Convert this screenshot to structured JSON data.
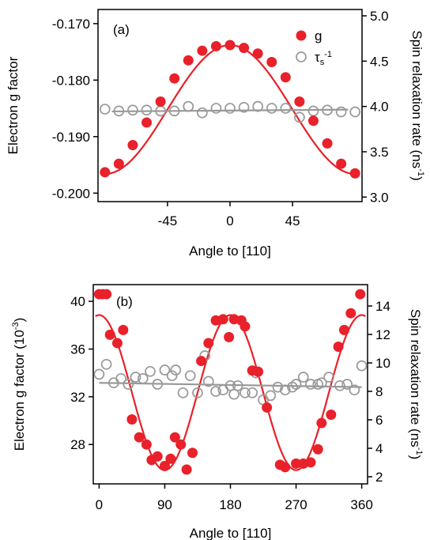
{
  "chart_data": [
    {
      "type": "scatter",
      "panel_label": "(a)",
      "xlabel": "Angle to [110]",
      "ylabel_left": "Electron g factor",
      "ylabel_right": "Spin relaxation rate (ns",
      "ylabel_right_sup": "-1",
      "ylabel_right_close": ")",
      "xlim": [
        -95,
        95
      ],
      "ylim_left": [
        -0.2015,
        -0.1675
      ],
      "ylim_right": [
        2.95,
        5.07
      ],
      "x_ticks": [
        -45,
        0,
        45
      ],
      "x_tick_labels": [
        "-45",
        "0",
        "45"
      ],
      "y_left_ticks": [
        -0.2,
        -0.19,
        -0.18,
        -0.17
      ],
      "y_left_tick_labels": [
        "-0.200",
        "-0.190",
        "-0.180",
        "-0.170"
      ],
      "y_right_ticks": [
        3.0,
        3.5,
        4.0,
        4.5,
        5.0
      ],
      "y_right_tick_labels": [
        "3.0",
        "3.5",
        "4.0",
        "4.5",
        "5.0"
      ],
      "legend": {
        "placement": "top-right",
        "entries": [
          {
            "label": "g",
            "marker": "filled-circle",
            "color": "#e8212a"
          },
          {
            "label": "τ",
            "sub": "s",
            "sup": "-1",
            "marker": "open-circle",
            "color": "#999999"
          }
        ]
      },
      "series": [
        {
          "name": "g",
          "axis": "left",
          "color": "#e8212a",
          "marker": "filled-circle",
          "x": [
            -90,
            -80,
            -70,
            -60,
            -50,
            -40,
            -30,
            -20,
            -10,
            0,
            10,
            20,
            30,
            40,
            50,
            60,
            70,
            80,
            90
          ],
          "y": [
            -0.1963,
            -0.1948,
            -0.1915,
            -0.1875,
            -0.1838,
            -0.1797,
            -0.1765,
            -0.1748,
            -0.174,
            -0.1738,
            -0.1743,
            -0.1753,
            -0.1768,
            -0.1795,
            -0.1838,
            -0.1872,
            -0.1912,
            -0.1948,
            -0.1965
          ]
        },
        {
          "name": "τ",
          "axis": "right",
          "color": "#999999",
          "marker": "open-circle",
          "x": [
            -90,
            -80,
            -70,
            -60,
            -50,
            -40,
            -30,
            -20,
            -10,
            0,
            10,
            20,
            30,
            40,
            50,
            60,
            70,
            80,
            90
          ],
          "y": [
            3.97,
            3.95,
            3.96,
            3.96,
            3.95,
            3.95,
            4.0,
            3.93,
            3.98,
            3.98,
            3.99,
            4.0,
            3.98,
            3.98,
            3.88,
            3.95,
            3.96,
            3.94,
            3.94
          ]
        }
      ],
      "fits": [
        {
          "axis": "left",
          "color": "#e8212a",
          "kind": "cos2",
          "offset": -0.1852,
          "amplitude": 0.0114
        },
        {
          "axis": "right",
          "color": "#999999",
          "kind": "linear",
          "x": [
            -85,
            85
          ],
          "y": [
            3.945,
            3.965
          ]
        }
      ]
    },
    {
      "type": "scatter",
      "panel_label": "(b)",
      "xlabel": "Angle to [110]",
      "ylabel_left": "Electron g factor (10",
      "ylabel_left_sup": "-3",
      "ylabel_left_close": ")",
      "ylabel_right": "Spin relaxation rate (ns",
      "ylabel_right_sup": "-1",
      "ylabel_right_close": ")",
      "xlim": [
        -8,
        368
      ],
      "ylim_left": [
        24.7,
        41.4
      ],
      "ylim_right": [
        1.5,
        15.5
      ],
      "x_ticks": [
        0,
        90,
        180,
        270,
        360
      ],
      "x_tick_labels": [
        "0",
        "90",
        "180",
        "270",
        "360"
      ],
      "y_left_ticks": [
        28,
        32,
        36,
        40
      ],
      "y_left_tick_labels": [
        "28",
        "32",
        "36",
        "40"
      ],
      "y_right_ticks": [
        2,
        4,
        6,
        8,
        10,
        12,
        14
      ],
      "y_right_tick_labels": [
        "2",
        "4",
        "6",
        "8",
        "10",
        "12",
        "14"
      ],
      "series": [
        {
          "name": "",
          "axis": "left",
          "color": "#e8212a",
          "marker": "filled-circle",
          "x": [
            0,
            5,
            10,
            15,
            25,
            33,
            45,
            55,
            65,
            72,
            80,
            90,
            98,
            104,
            112,
            120,
            128,
            140,
            150,
            160,
            170,
            178,
            185,
            195,
            200,
            210,
            218,
            230,
            248,
            255,
            270,
            280,
            290,
            300,
            305,
            318,
            328,
            336,
            345,
            358
          ],
          "y": [
            40.6,
            40.6,
            40.6,
            37.2,
            36.5,
            37.6,
            30.1,
            28.6,
            28.0,
            26.7,
            27.0,
            26.2,
            26.8,
            28.6,
            28.0,
            25.9,
            27.3,
            35.0,
            36.5,
            38.4,
            38.5,
            37.0,
            38.5,
            38.4,
            37.9,
            34.2,
            34.1,
            31.1,
            26.3,
            26.1,
            26.4,
            26.4,
            26.5,
            27.6,
            29.8,
            30.5,
            36.2,
            37.6,
            39.0,
            40.6
          ]
        },
        {
          "name": "",
          "axis": "right",
          "color": "#999999",
          "marker": "open-circle",
          "x": [
            0,
            10,
            20,
            30,
            40,
            50,
            60,
            70,
            80,
            90,
            100,
            105,
            115,
            125,
            135,
            145,
            150,
            160,
            170,
            180,
            185,
            190,
            200,
            210,
            215,
            225,
            235,
            245,
            255,
            265,
            270,
            280,
            290,
            300,
            305,
            315,
            330,
            340,
            350,
            360
          ],
          "y": [
            9.2,
            9.9,
            8.6,
            8.9,
            8.5,
            9.0,
            8.9,
            9.4,
            8.5,
            9.5,
            9.1,
            9.5,
            7.9,
            9.1,
            7.9,
            10.5,
            8.7,
            8.0,
            8.1,
            8.4,
            7.8,
            8.4,
            7.9,
            7.9,
            9.3,
            7.4,
            7.7,
            8.3,
            8.1,
            8.3,
            8.5,
            9.0,
            8.5,
            8.5,
            8.6,
            9.0,
            8.4,
            8.5,
            8.1,
            9.8
          ]
        }
      ],
      "fits": [
        {
          "axis": "left",
          "color": "#e8212a",
          "kind": "cos2",
          "offset": 32.35,
          "amplitude": 6.5
        },
        {
          "axis": "right",
          "color": "#999999",
          "kind": "linear",
          "x": [
            0,
            360
          ],
          "y": [
            8.6,
            8.3
          ]
        }
      ]
    }
  ]
}
